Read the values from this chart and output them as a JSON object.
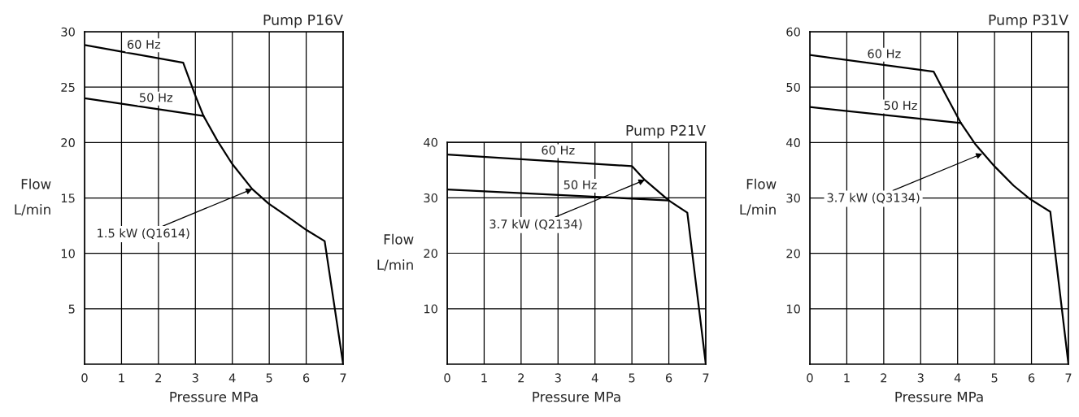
{
  "chart_data": [
    {
      "type": "line",
      "title": "Pump P16V",
      "xlabel": "Pressure MPa",
      "ylabel": "Flow\nL/min",
      "xlim": [
        0,
        7
      ],
      "ylim": [
        0,
        30
      ],
      "xticks": [
        0,
        1,
        2,
        3,
        4,
        5,
        6,
        7
      ],
      "yticks": [
        5,
        10,
        15,
        20,
        25,
        30
      ],
      "grid": true,
      "legend": false,
      "marker": "none",
      "line_style": "solid",
      "series": [
        {
          "name": "60 Hz",
          "color": "#000000",
          "x": [
            0,
            2.67,
            2.98,
            3.22,
            3.59,
            3.99,
            4.54,
            4.98,
            5.5,
            6.01,
            6.5,
            7
          ],
          "values": [
            28.8,
            27.2,
            24.4,
            22.4,
            20.2,
            18.1,
            15.8,
            14.5,
            13.3,
            12.1,
            11.1,
            0
          ]
        },
        {
          "name": "50 Hz",
          "color": "#000000",
          "x": [
            0,
            3.22
          ],
          "values": [
            24.0,
            22.4
          ]
        }
      ],
      "annotations": [
        {
          "text": "1.5 kW (Q1614)",
          "x": 4.54,
          "y": 15.8
        }
      ]
    },
    {
      "type": "line",
      "title": "Pump P21V",
      "xlabel": "Pressure MPa",
      "ylabel": "Flow\nL/min",
      "xlim": [
        0,
        7
      ],
      "ylim": [
        0,
        40
      ],
      "xticks": [
        0,
        1,
        2,
        3,
        4,
        5,
        6,
        7
      ],
      "yticks": [
        10,
        20,
        30,
        40
      ],
      "grid": true,
      "legend": false,
      "marker": "none",
      "line_style": "solid",
      "series": [
        {
          "name": "60 Hz",
          "color": "#000000",
          "x": [
            0,
            5.0,
            5.35,
            6.0,
            6.5,
            7
          ],
          "values": [
            37.8,
            35.7,
            33.2,
            29.5,
            27.3,
            0
          ]
        },
        {
          "name": "50 Hz",
          "color": "#000000",
          "x": [
            0,
            6.0
          ],
          "values": [
            31.5,
            29.5
          ]
        }
      ],
      "annotations": [
        {
          "text": "3.7 kW (Q2134)",
          "x": 5.35,
          "y": 33.2
        }
      ]
    },
    {
      "type": "line",
      "title": "Pump P31V",
      "xlabel": "Pressure MPa",
      "ylabel": "Flow\nL/min",
      "xlim": [
        0,
        7
      ],
      "ylim": [
        0,
        60
      ],
      "xticks": [
        0,
        1,
        2,
        3,
        4,
        5,
        6,
        7
      ],
      "yticks": [
        10,
        20,
        30,
        40,
        50,
        60
      ],
      "grid": true,
      "legend": false,
      "marker": "none",
      "line_style": "solid",
      "series": [
        {
          "name": "60 Hz",
          "color": "#000000",
          "x": [
            0,
            3.35,
            3.68,
            4.09,
            4.49,
            5.0,
            5.52,
            5.96,
            6.51,
            7
          ],
          "values": [
            55.8,
            52.8,
            48.6,
            43.5,
            39.6,
            35.7,
            32.2,
            29.8,
            27.5,
            0
          ]
        },
        {
          "name": "50 Hz",
          "color": "#000000",
          "x": [
            0,
            4.09
          ],
          "values": [
            46.4,
            43.5
          ]
        }
      ],
      "annotations": [
        {
          "text": "3.7 kW (Q3134)",
          "x": 4.67,
          "y": 38.0
        }
      ]
    }
  ]
}
